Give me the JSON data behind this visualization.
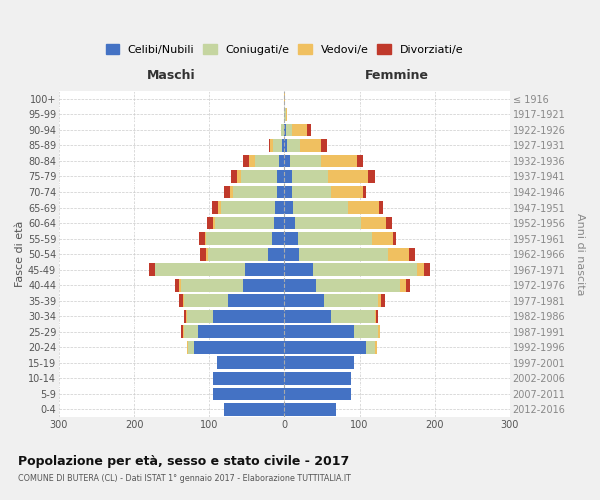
{
  "age_groups": [
    "0-4",
    "5-9",
    "10-14",
    "15-19",
    "20-24",
    "25-29",
    "30-34",
    "35-39",
    "40-44",
    "45-49",
    "50-54",
    "55-59",
    "60-64",
    "65-69",
    "70-74",
    "75-79",
    "80-84",
    "85-89",
    "90-94",
    "95-99",
    "100+"
  ],
  "birth_years": [
    "2012-2016",
    "2007-2011",
    "2002-2006",
    "1997-2001",
    "1992-1996",
    "1987-1991",
    "1982-1986",
    "1977-1981",
    "1972-1976",
    "1967-1971",
    "1962-1966",
    "1957-1961",
    "1952-1956",
    "1947-1951",
    "1942-1946",
    "1937-1941",
    "1932-1936",
    "1927-1931",
    "1922-1926",
    "1917-1921",
    "≤ 1916"
  ],
  "colors": {
    "celibe": "#4472c4",
    "coniugato": "#c5d5a0",
    "vedovo": "#f0c060",
    "divorziato": "#c0392b"
  },
  "maschi": {
    "celibe": [
      80,
      95,
      95,
      90,
      120,
      115,
      95,
      75,
      55,
      52,
      22,
      16,
      14,
      12,
      10,
      10,
      7,
      3,
      1,
      0,
      0
    ],
    "coniugato": [
      0,
      0,
      0,
      0,
      8,
      18,
      34,
      58,
      82,
      120,
      80,
      88,
      78,
      73,
      58,
      48,
      32,
      12,
      3,
      0,
      0
    ],
    "vedovo": [
      0,
      0,
      0,
      0,
      2,
      2,
      2,
      2,
      3,
      0,
      2,
      2,
      3,
      3,
      5,
      5,
      8,
      4,
      0,
      0,
      0
    ],
    "divorziato": [
      0,
      0,
      0,
      0,
      0,
      2,
      3,
      5,
      5,
      8,
      8,
      8,
      8,
      8,
      8,
      8,
      8,
      2,
      0,
      0,
      0
    ]
  },
  "femmine": {
    "celibe": [
      68,
      88,
      88,
      92,
      108,
      92,
      62,
      52,
      42,
      38,
      20,
      18,
      14,
      12,
      10,
      10,
      7,
      3,
      2,
      0,
      0
    ],
    "coniugato": [
      0,
      0,
      0,
      0,
      13,
      33,
      58,
      72,
      112,
      138,
      118,
      98,
      88,
      72,
      52,
      48,
      42,
      18,
      8,
      2,
      0
    ],
    "vedovo": [
      0,
      0,
      0,
      0,
      2,
      2,
      2,
      5,
      8,
      10,
      28,
      28,
      33,
      42,
      42,
      53,
      48,
      28,
      20,
      2,
      1
    ],
    "divorziato": [
      0,
      0,
      0,
      0,
      0,
      0,
      2,
      5,
      5,
      8,
      8,
      5,
      8,
      5,
      5,
      10,
      8,
      8,
      5,
      0,
      0
    ]
  },
  "title": "Popolazione per età, sesso e stato civile - 2017",
  "subtitle": "COMUNE DI BUTERA (CL) - Dati ISTAT 1° gennaio 2017 - Elaborazione TUTTITALIA.IT",
  "xlabel_left": "Maschi",
  "xlabel_right": "Femmine",
  "ylabel_left": "Fasce di età",
  "ylabel_right": "Anni di nascita",
  "xlim": 300,
  "background_color": "#f0f0f0",
  "plot_background": "#ffffff",
  "legend_labels": [
    "Celibi/Nubili",
    "Coniugati/e",
    "Vedovi/e",
    "Divorziati/e"
  ]
}
